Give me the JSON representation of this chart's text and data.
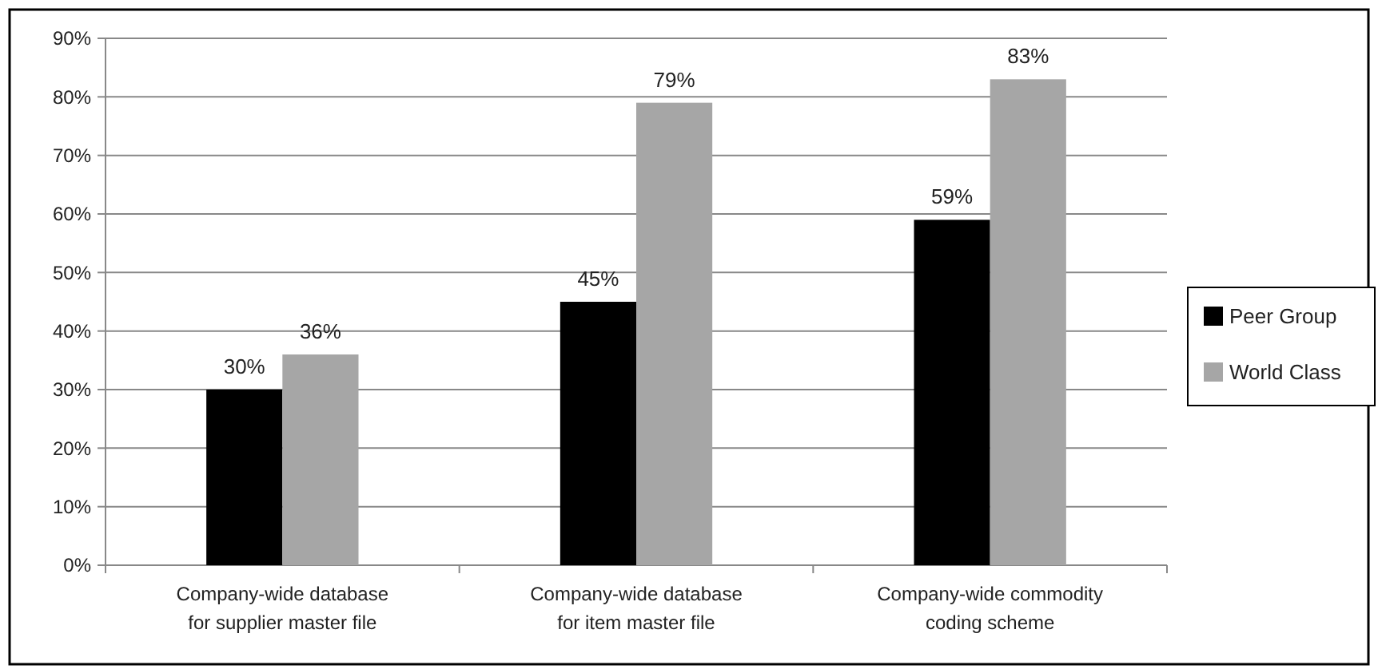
{
  "chart_data": {
    "type": "bar",
    "categories": [
      "Company-wide database for supplier master file",
      "Company-wide database for item master file",
      "Company-wide commodity coding scheme"
    ],
    "series": [
      {
        "name": "Peer Group",
        "color": "#000000",
        "values": [
          30,
          45,
          59
        ],
        "value_labels": [
          "30%",
          "45%",
          "59%"
        ]
      },
      {
        "name": "World Class",
        "color": "#a6a6a6",
        "values": [
          36,
          79,
          83
        ],
        "value_labels": [
          "36%",
          "79%",
          "83%"
        ]
      }
    ],
    "ylim": [
      0,
      90
    ],
    "yticks": [
      {
        "value": 0,
        "label": "0%"
      },
      {
        "value": 10,
        "label": "10%"
      },
      {
        "value": 20,
        "label": "20%"
      },
      {
        "value": 30,
        "label": "30%"
      },
      {
        "value": 40,
        "label": "40%"
      },
      {
        "value": 50,
        "label": "50%"
      },
      {
        "value": 60,
        "label": "60%"
      },
      {
        "value": 70,
        "label": "70%"
      },
      {
        "value": 80,
        "label": "80%"
      },
      {
        "value": 90,
        "label": "90%"
      }
    ],
    "grid": "y",
    "legend": "right"
  }
}
